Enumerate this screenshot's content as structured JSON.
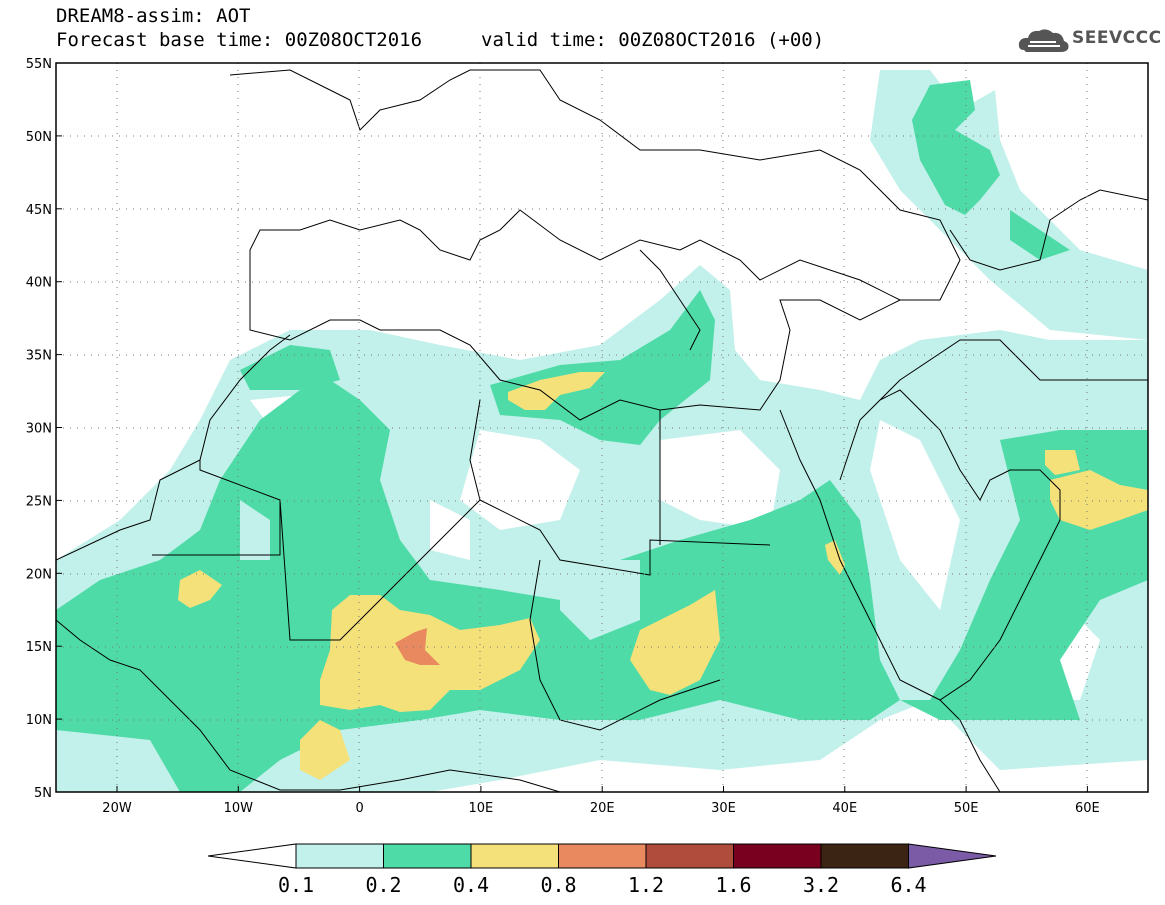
{
  "header": {
    "line1": "DREAM8-assim: AOT",
    "line2": "Forecast base time: 00Z08OCT2016",
    "valid": "valid time: 00Z08OCT2016 (+00)",
    "logo": "SEEVCCC"
  },
  "map": {
    "lat_labels": [
      "55N",
      "50N",
      "45N",
      "40N",
      "35N",
      "30N",
      "25N",
      "20N",
      "15N",
      "10N",
      "5N"
    ],
    "lon_labels": [
      "20W",
      "10W",
      "0",
      "10E",
      "20E",
      "30E",
      "40E",
      "50E",
      "60E"
    ],
    "extent": {
      "lon": [
        -25,
        65
      ],
      "lat": [
        5,
        55
      ]
    }
  },
  "colorbar": {
    "labels": [
      "0.1",
      "0.2",
      "0.4",
      "0.8",
      "1.2",
      "1.6",
      "3.2",
      "6.4"
    ],
    "colors": [
      "#ffffff",
      "#c2f0ea",
      "#4fdba8",
      "#f5e17a",
      "#e8895f",
      "#b04c3c",
      "#7a0020",
      "#3b2414",
      "#7b5aa6"
    ]
  }
}
